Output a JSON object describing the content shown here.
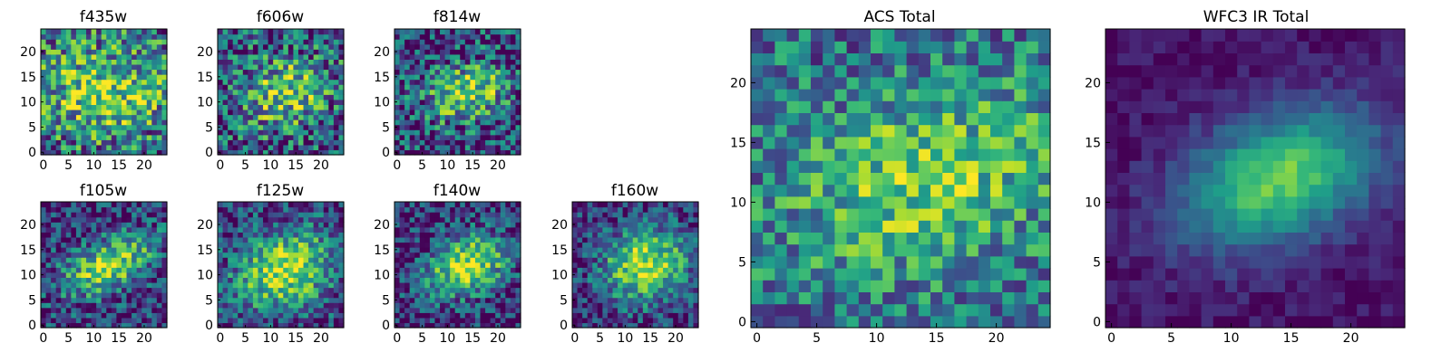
{
  "colormap": [
    "#440154",
    "#482878",
    "#3e4a89",
    "#31688e",
    "#26828e",
    "#1f9e89",
    "#35b779",
    "#6ece58",
    "#b5de2b",
    "#fde725"
  ],
  "chart_data": [
    {
      "type": "heatmap",
      "title": "f435w",
      "grid_size": 25,
      "xticks": [
        0,
        5,
        10,
        15,
        20
      ],
      "yticks": [
        0,
        5,
        10,
        15,
        20
      ],
      "xlim": [
        -0.5,
        24.5
      ],
      "ylim": [
        -0.5,
        24.5
      ],
      "blob": {
        "cx": 12,
        "cy": 12,
        "sx": 9,
        "sy": 6,
        "tilt": 0.0,
        "amp": 0.45
      },
      "base": 0.6,
      "noise": 0.42,
      "seed": 11
    },
    {
      "type": "heatmap",
      "title": "f606w",
      "grid_size": 25,
      "xticks": [
        0,
        5,
        10,
        15,
        20
      ],
      "yticks": [
        0,
        5,
        10,
        15,
        20
      ],
      "xlim": [
        -0.5,
        24.5
      ],
      "ylim": [
        -0.5,
        24.5
      ],
      "blob": {
        "cx": 13,
        "cy": 12,
        "sx": 7,
        "sy": 5,
        "tilt": 0.3,
        "amp": 0.5
      },
      "base": 0.5,
      "noise": 0.42,
      "seed": 23
    },
    {
      "type": "heatmap",
      "title": "f814w",
      "grid_size": 25,
      "xticks": [
        0,
        5,
        10,
        15,
        20
      ],
      "yticks": [
        0,
        5,
        10,
        15,
        20
      ],
      "xlim": [
        -0.5,
        24.5
      ],
      "ylim": [
        -0.5,
        24.5
      ],
      "blob": {
        "cx": 14,
        "cy": 12,
        "sx": 6,
        "sy": 4,
        "tilt": 0.3,
        "amp": 0.6
      },
      "base": 0.45,
      "noise": 0.4,
      "seed": 37
    },
    {
      "type": "heatmap",
      "title": "f105w",
      "grid_size": 25,
      "xticks": [
        0,
        5,
        10,
        15,
        20
      ],
      "yticks": [
        0,
        5,
        10,
        15,
        20
      ],
      "xlim": [
        -0.5,
        24.5
      ],
      "ylim": [
        -0.5,
        24.5
      ],
      "blob": {
        "cx": 13,
        "cy": 12,
        "sx": 7,
        "sy": 3.5,
        "tilt": 0.45,
        "amp": 0.7
      },
      "base": 0.4,
      "noise": 0.32,
      "seed": 41
    },
    {
      "type": "heatmap",
      "title": "f125w",
      "grid_size": 25,
      "xticks": [
        0,
        5,
        10,
        15,
        20
      ],
      "yticks": [
        0,
        5,
        10,
        15,
        20
      ],
      "xlim": [
        -0.5,
        24.5
      ],
      "ylim": [
        -0.5,
        24.5
      ],
      "blob": {
        "cx": 13,
        "cy": 11,
        "sx": 7,
        "sy": 5,
        "tilt": 0.4,
        "amp": 0.7
      },
      "base": 0.45,
      "noise": 0.3,
      "seed": 53
    },
    {
      "type": "heatmap",
      "title": "f140w",
      "grid_size": 25,
      "xticks": [
        0,
        5,
        10,
        15,
        20
      ],
      "yticks": [
        0,
        5,
        10,
        15,
        20
      ],
      "xlim": [
        -0.5,
        24.5
      ],
      "ylim": [
        -0.5,
        24.5
      ],
      "blob": {
        "cx": 14,
        "cy": 12,
        "sx": 6,
        "sy": 4,
        "tilt": 0.4,
        "amp": 0.75
      },
      "base": 0.4,
      "noise": 0.3,
      "seed": 67
    },
    {
      "type": "heatmap",
      "title": "f160w",
      "grid_size": 25,
      "xticks": [
        0,
        5,
        10,
        15,
        20
      ],
      "yticks": [
        0,
        5,
        10,
        15,
        20
      ],
      "xlim": [
        -0.5,
        24.5
      ],
      "ylim": [
        -0.5,
        24.5
      ],
      "blob": {
        "cx": 14,
        "cy": 12,
        "sx": 6,
        "sy": 5,
        "tilt": 0.3,
        "amp": 0.75
      },
      "base": 0.4,
      "noise": 0.28,
      "seed": 79
    },
    {
      "type": "heatmap",
      "title": "ACS Total",
      "grid_size": 25,
      "xticks": [
        0,
        5,
        10,
        15,
        20
      ],
      "yticks": [
        0,
        5,
        10,
        15,
        20
      ],
      "xlim": [
        -0.5,
        24.5
      ],
      "ylim": [
        -0.5,
        24.5
      ],
      "blob": {
        "cx": 14,
        "cy": 12,
        "sx": 8,
        "sy": 5,
        "tilt": 0.3,
        "amp": 0.4
      },
      "base": 0.62,
      "noise": 0.3,
      "seed": 97
    },
    {
      "type": "heatmap",
      "title": "WFC3 IR Total",
      "grid_size": 25,
      "xticks": [
        0,
        5,
        10,
        15,
        20
      ],
      "yticks": [
        0,
        5,
        10,
        15,
        20
      ],
      "xlim": [
        -0.5,
        24.5
      ],
      "ylim": [
        -0.5,
        24.5
      ],
      "blob": {
        "cx": 14,
        "cy": 12,
        "sx": 6,
        "sy": 3.6,
        "tilt": 0.4,
        "amp": 0.72
      },
      "base": 0.3,
      "noise": 0.08,
      "seed": 113
    }
  ]
}
